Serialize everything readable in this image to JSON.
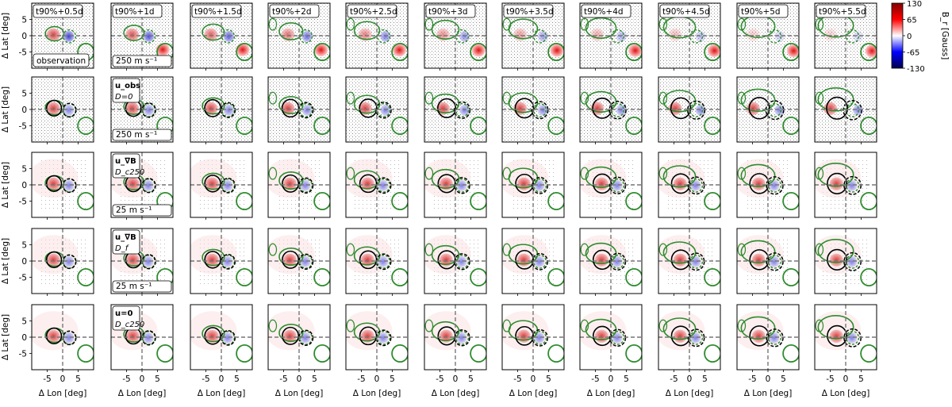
{
  "chart_data": {
    "type": "heatmap",
    "grid": {
      "rows": 5,
      "cols": 11
    },
    "column_titles": [
      "t90%+0.5d",
      "t90%+1d",
      "t90%+1.5d",
      "t90%+2d",
      "t90%+2.5d",
      "t90%+3d",
      "t90%+3.5d",
      "t90%+4d",
      "t90%+4.5d",
      "t90%+5d",
      "t90%+5.5d"
    ],
    "row_labels": [
      {
        "main": "",
        "sub": ""
      },
      {
        "main": "u_obs",
        "sub": "D=0"
      },
      {
        "main": "u_∇B",
        "sub": "D_c250"
      },
      {
        "main": "u_∇B",
        "sub": "D_f"
      },
      {
        "main": "u=0",
        "sub": "D_c250"
      }
    ],
    "panel_annotations": {
      "observation": "observation",
      "scale_250": "250 m s⁻¹",
      "scale_25": "25 m s⁻¹"
    },
    "xlabel": "Δ Lon [deg]",
    "ylabel": "Δ Lat [deg]",
    "x_ticks": [
      -5,
      0,
      5
    ],
    "y_ticks": [
      5,
      0,
      -5
    ],
    "xlim": [
      -10,
      10
    ],
    "ylim": [
      -10,
      10
    ],
    "colorbar": {
      "label": "B_r [Gauss]",
      "ticks": [
        130,
        65,
        0,
        -65,
        -130
      ],
      "range": [
        -130,
        130
      ],
      "colormap": "seismic",
      "stops": [
        "#00004d",
        "#0000ff",
        "#ffffff",
        "#ff0000",
        "#800000"
      ]
    },
    "colors": {
      "contour_green": "#2e8b2e",
      "contour_black": "#000000",
      "crosshair": "#777777"
    }
  }
}
